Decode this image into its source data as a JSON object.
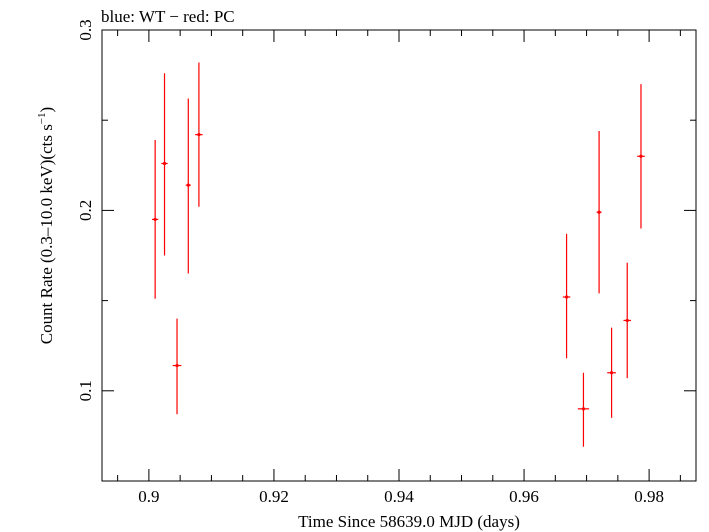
{
  "chart_data": {
    "type": "scatter",
    "title": "blue: WT − red: PC",
    "xlabel": "Time Since 58639.0 MJD (days)",
    "ylabel_main": "Count Rate (0.3–10.0 keV)(cts s",
    "ylabel_sup": "−1",
    "ylabel_end": ")",
    "xlim": [
      0.8925,
      0.9875
    ],
    "ylim": [
      0.05,
      0.3
    ],
    "x_ticks": [
      0.9,
      0.92,
      0.94,
      0.96,
      0.98
    ],
    "x_tick_labels": [
      "0.9",
      "0.92",
      "0.94",
      "0.96",
      "0.98"
    ],
    "y_ticks": [
      0.1,
      0.2,
      0.3
    ],
    "y_tick_labels": [
      "0.1",
      "0.2",
      "0.3"
    ],
    "grid": false,
    "series": [
      {
        "color": "#ff0000",
        "points": [
          {
            "x": 0.901,
            "xerr": 0.0005,
            "y": 0.195,
            "yerr_lo": 0.044,
            "yerr_hi": 0.044
          },
          {
            "x": 0.9025,
            "xerr": 0.0005,
            "y": 0.226,
            "yerr_lo": 0.051,
            "yerr_hi": 0.05
          },
          {
            "x": 0.9045,
            "xerr": 0.0007,
            "y": 0.114,
            "yerr_lo": 0.027,
            "yerr_hi": 0.026
          },
          {
            "x": 0.9063,
            "xerr": 0.0004,
            "y": 0.214,
            "yerr_lo": 0.049,
            "yerr_hi": 0.048
          },
          {
            "x": 0.908,
            "xerr": 0.0006,
            "y": 0.242,
            "yerr_lo": 0.04,
            "yerr_hi": 0.04
          },
          {
            "x": 0.9668,
            "xerr": 0.0006,
            "y": 0.152,
            "yerr_lo": 0.034,
            "yerr_hi": 0.035
          },
          {
            "x": 0.9695,
            "xerr": 0.0009,
            "y": 0.09,
            "yerr_lo": 0.021,
            "yerr_hi": 0.02
          },
          {
            "x": 0.972,
            "xerr": 0.0004,
            "y": 0.199,
            "yerr_lo": 0.045,
            "yerr_hi": 0.045
          },
          {
            "x": 0.974,
            "xerr": 0.0007,
            "y": 0.11,
            "yerr_lo": 0.025,
            "yerr_hi": 0.025
          },
          {
            "x": 0.9765,
            "xerr": 0.0006,
            "y": 0.139,
            "yerr_lo": 0.032,
            "yerr_hi": 0.032
          },
          {
            "x": 0.9787,
            "xerr": 0.0006,
            "y": 0.23,
            "yerr_lo": 0.04,
            "yerr_hi": 0.04
          }
        ]
      }
    ]
  }
}
